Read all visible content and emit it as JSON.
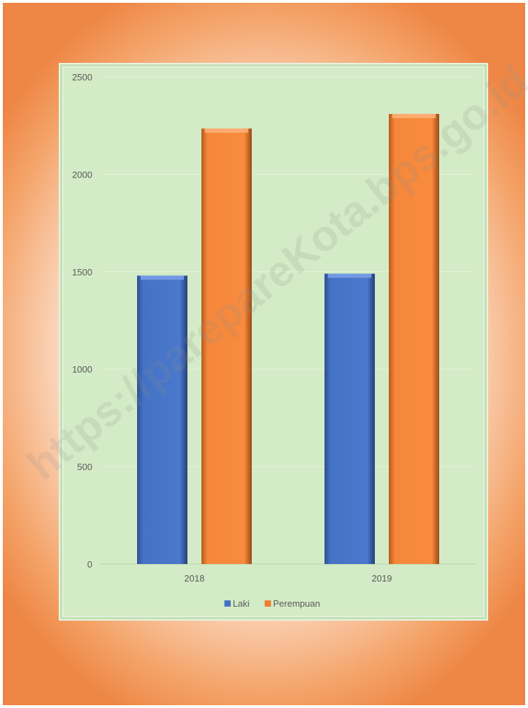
{
  "watermark": "https://parepareKota.bps.go.id",
  "chart_data": {
    "type": "bar",
    "categories": [
      "2018",
      "2019"
    ],
    "series": [
      {
        "name": "Laki",
        "values": [
          1480,
          1490
        ],
        "color": "#4472c4"
      },
      {
        "name": "Perempuan",
        "values": [
          2235,
          2310
        ],
        "color": "#ed7d31"
      }
    ],
    "yticks": [
      "0",
      "500",
      "1000",
      "1500",
      "2000",
      "2500"
    ],
    "ylim": [
      0,
      2500
    ],
    "grid": true,
    "legend_position": "bottom"
  }
}
